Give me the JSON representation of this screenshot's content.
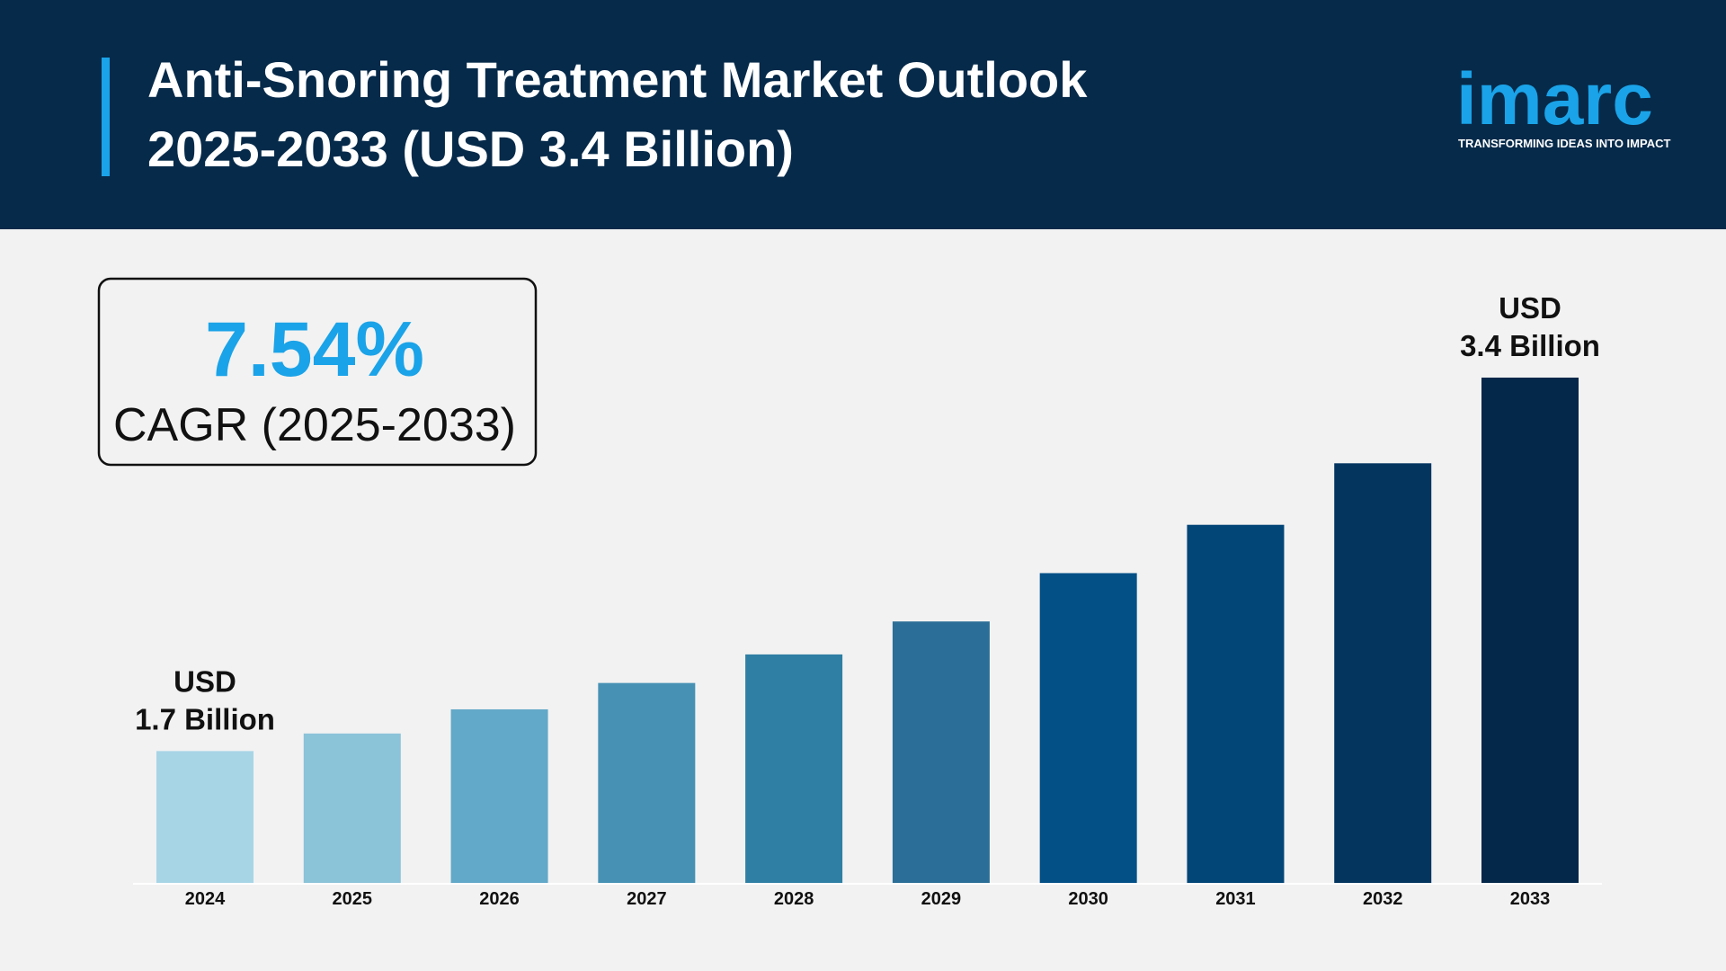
{
  "header": {
    "title": [
      "Anti-Snoring Treatment Market Outlook",
      "2025-2033 (USD 3.4 Billion)"
    ],
    "logo": "imarc",
    "tagline": "TRANSFORMING IDEAS INTO IMPACT"
  },
  "cagr": {
    "value": "7.54%",
    "label": "CAGR (2025-2033)"
  },
  "chart_data": {
    "type": "bar",
    "categories": [
      "2024",
      "2025",
      "2026",
      "2027",
      "2028",
      "2029",
      "2030",
      "2031",
      "2032",
      "2033"
    ],
    "values": [
      1.7,
      1.78,
      1.89,
      2.01,
      2.14,
      2.29,
      2.51,
      2.73,
      3.01,
      3.4
    ],
    "value_labels": [
      [
        "USD",
        "1.7 Billion"
      ],
      null,
      null,
      null,
      null,
      null,
      null,
      null,
      null,
      [
        "USD",
        "3.4 Billion"
      ]
    ],
    "colors": [
      "#a8d5e6",
      "#8bc3d9",
      "#62a8c8",
      "#4792b4",
      "#2f7fa5",
      "#2b6e97",
      "#035087",
      "#024577",
      "#03355f",
      "#04284a"
    ],
    "ylim": [
      1.1,
      3.4
    ]
  }
}
